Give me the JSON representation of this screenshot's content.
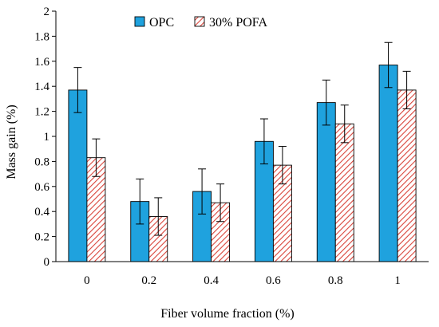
{
  "chart_data": {
    "type": "bar",
    "title": "",
    "xlabel": "Fiber volume fraction (%)",
    "ylabel": "Mass gain (%)",
    "ylim": [
      0,
      2
    ],
    "yticks": [
      "0",
      "0.2",
      "0.4",
      "0.6",
      "0.8",
      "1",
      "1.2",
      "1.4",
      "1.6",
      "1.8",
      "2"
    ],
    "categories": [
      "0",
      "0.2",
      "0.4",
      "0.6",
      "0.8",
      "1"
    ],
    "grid": false,
    "legend_position": "top",
    "series": [
      {
        "name": "OPC",
        "values": [
          1.37,
          0.48,
          0.56,
          0.96,
          1.27,
          1.57
        ],
        "errors": [
          0.18,
          0.18,
          0.18,
          0.18,
          0.18,
          0.18
        ],
        "color": "#1fa2de",
        "pattern": "solid"
      },
      {
        "name": "30% POFA",
        "values": [
          0.83,
          0.36,
          0.47,
          0.77,
          1.1,
          1.37
        ],
        "errors": [
          0.15,
          0.15,
          0.15,
          0.15,
          0.15,
          0.15
        ],
        "color": "#d9443a",
        "pattern": "diagonal-hatch"
      }
    ]
  }
}
